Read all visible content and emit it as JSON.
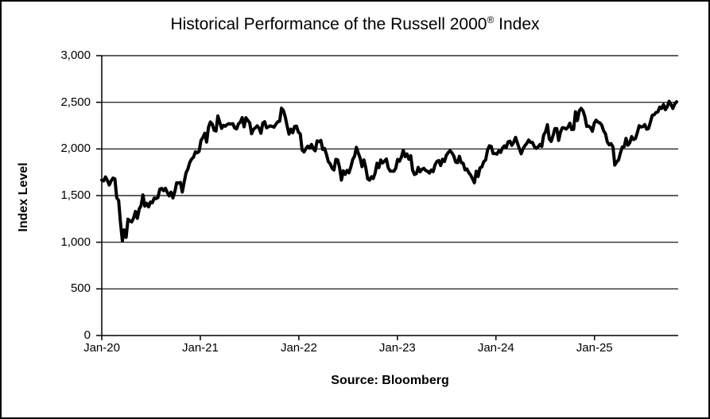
{
  "title": {
    "prefix": "Historical Performance of the Russell 2000",
    "sup": "®",
    "suffix": " Index"
  },
  "source_caption": "Source: Bloomberg",
  "colors": {
    "background": "#ffffff",
    "border": "#000000",
    "line": "#000000",
    "grid": "#000000",
    "text": "#000000"
  },
  "chart_data": {
    "type": "line",
    "title": "Historical Performance of the Russell 2000® Index",
    "xlabel": "",
    "ylabel": "Index Level",
    "source": "Source: Bloomberg",
    "ylim": [
      0,
      3000
    ],
    "grid": "horizontal",
    "legend": "none",
    "line_width": 4,
    "y_ticks": [
      {
        "value": 3000,
        "label": "3,000"
      },
      {
        "value": 2500,
        "label": "2,500"
      },
      {
        "value": 2000,
        "label": "2,000"
      },
      {
        "value": 1500,
        "label": "1,500"
      },
      {
        "value": 1000,
        "label": "1,000"
      },
      {
        "value": 500,
        "label": "500"
      },
      {
        "value": 0,
        "label": "0"
      }
    ],
    "x_ticks": [
      {
        "month": 0,
        "label": "Jan-20"
      },
      {
        "month": 12,
        "label": "Jan-21"
      },
      {
        "month": 24,
        "label": "Jan-22"
      },
      {
        "month": 36,
        "label": "Jan-23"
      },
      {
        "month": 48,
        "label": "Jan-24"
      },
      {
        "month": 60,
        "label": "Jan-25"
      }
    ],
    "x_total_months": 70,
    "series": [
      {
        "name": "Russell 2000 Index Level",
        "frequency": "weekly",
        "start": "Jan-2020",
        "end": "Nov-2025",
        "color": "#000000",
        "values": [
          1666,
          1658,
          1700,
          1662,
          1614,
          1657,
          1688,
          1679,
          1476,
          1449,
          1210,
          1014,
          1132,
          1052,
          1247,
          1229,
          1217,
          1260,
          1330,
          1256,
          1356,
          1394,
          1507,
          1387,
          1418,
          1379,
          1431,
          1423,
          1473,
          1468,
          1480,
          1569,
          1577,
          1552,
          1578,
          1535,
          1497,
          1537,
          1475,
          1540,
          1637,
          1634,
          1641,
          1538,
          1644,
          1744,
          1785,
          1855,
          1892,
          1912,
          1970,
          1959,
          1975,
          2092,
          2123,
          2168,
          2073,
          2233,
          2289,
          2266,
          2201,
          2192,
          2353,
          2287,
          2221,
          2253,
          2243,
          2263,
          2271,
          2266,
          2271,
          2224,
          2215,
          2269,
          2286,
          2336,
          2237,
          2334,
          2306,
          2280,
          2163,
          2210,
          2226,
          2248,
          2223,
          2168,
          2277,
          2292,
          2227,
          2237,
          2248,
          2241,
          2233,
          2266,
          2291,
          2297,
          2437,
          2411,
          2343,
          2246,
          2159,
          2212,
          2174,
          2242,
          2245,
          2179,
          2163,
          1988,
          1968,
          2003,
          2030,
          2009,
          2048,
          2001,
          1980,
          2086,
          2078,
          2091,
          1995,
          2005,
          1941,
          1864,
          1840,
          1793,
          1774,
          1888,
          1883,
          1801,
          1666,
          1766,
          1728,
          1770,
          1744,
          1806,
          1885,
          1922,
          2017,
          1957,
          1900,
          1810,
          1882,
          1799,
          1680,
          1665,
          1702,
          1683,
          1742,
          1847,
          1800,
          1882,
          1850,
          1869,
          1893,
          1797,
          1763,
          1761,
          1761,
          1793,
          1887,
          1868,
          1911,
          1986,
          1918,
          1946,
          1890,
          1928,
          1772,
          1726,
          1735,
          1802,
          1755,
          1781,
          1792,
          1769,
          1760,
          1741,
          1774,
          1757,
          1831,
          1866,
          1876,
          1822,
          1889,
          1865,
          1931,
          1960,
          1982,
          1958,
          1925,
          1859,
          1853,
          1921,
          1852,
          1847,
          1776,
          1785,
          1746,
          1720,
          1681,
          1637,
          1761,
          1705,
          1798,
          1807,
          1863,
          1881,
          1985,
          2034,
          2027,
          1951,
          1951,
          1944,
          1978,
          1963,
          2010,
          2033,
          2016,
          2076,
          2083,
          2039,
          2072,
          2124,
          2063,
          2003,
          1948,
          2002,
          2036,
          2060,
          2096,
          2070,
          2070,
          2026,
          2006,
          2022,
          2048,
          2027,
          2149,
          2184,
          2260,
          2109,
          2081,
          2142,
          2218,
          2218,
          2091,
          2182,
          2228,
          2225,
          2213,
          2234,
          2276,
          2208,
          2210,
          2399,
          2304,
          2407,
          2435,
          2409,
          2347,
          2242,
          2245,
          2230,
          2189,
          2276,
          2308,
          2288,
          2280,
          2256,
          2195,
          2163,
          2075,
          2044,
          2057,
          2023,
          1827,
          1861,
          1881,
          1958,
          2021,
          2023,
          2113,
          2040,
          2066,
          2132,
          2101,
          2110,
          2173,
          2249,
          2235,
          2240,
          2261,
          2212,
          2218,
          2287,
          2361,
          2366,
          2391,
          2397,
          2449,
          2434,
          2476,
          2421,
          2452,
          2511,
          2476,
          2434,
          2482,
          2506
        ]
      }
    ]
  }
}
